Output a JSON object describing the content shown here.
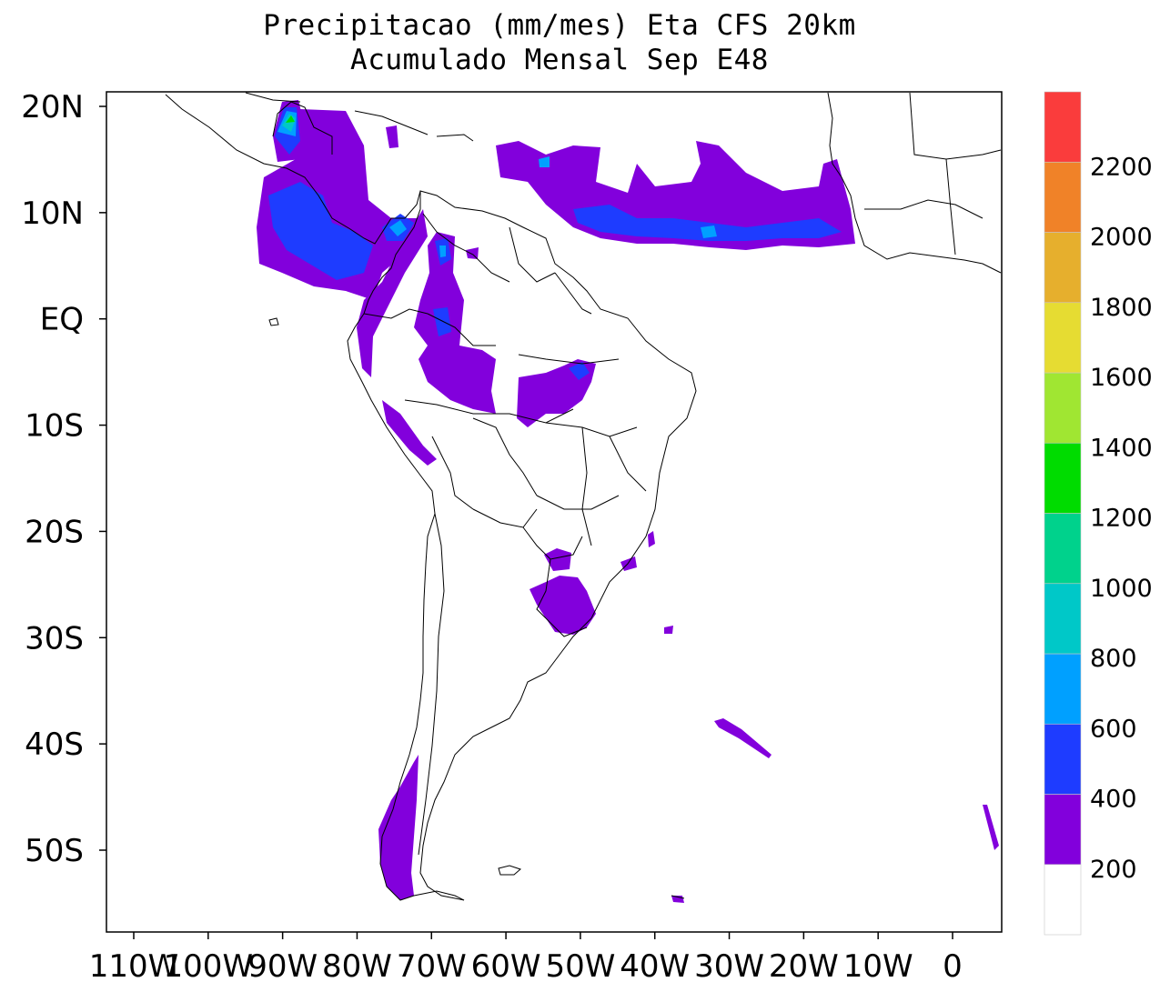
{
  "title": {
    "line1": "Precipitacao (mm/mes) Eta CFS 20km",
    "line2": "Acumulado Mensal Sep  E48"
  },
  "axes": {
    "lon_ticks": [
      "110W",
      "100W",
      "90W",
      "80W",
      "70W",
      "60W",
      "50W",
      "40W",
      "30W",
      "20W",
      "10W",
      "0"
    ],
    "lat_ticks": [
      "20N",
      "10N",
      "EQ",
      "10S",
      "20S",
      "30S",
      "40S",
      "50S"
    ]
  },
  "colorbar": {
    "labels": [
      "200",
      "400",
      "600",
      "800",
      "1000",
      "1200",
      "1400",
      "1600",
      "1800",
      "2000",
      "2200"
    ],
    "colors": [
      "#ffffff",
      "#8200dc",
      "#1e3cff",
      "#00a0ff",
      "#00c8c8",
      "#00d28c",
      "#00dc00",
      "#a0e632",
      "#e6dc32",
      "#e6af2d",
      "#f08228",
      "#fa3c3c"
    ]
  },
  "precip_colors": {
    "p200": "#8200dc",
    "p400": "#1e3cff",
    "p600": "#00a0ff",
    "p800": "#00c8c8",
    "p1000": "#00d28c",
    "p1200": "#00dc00",
    "p1400": "#a0e632"
  }
}
